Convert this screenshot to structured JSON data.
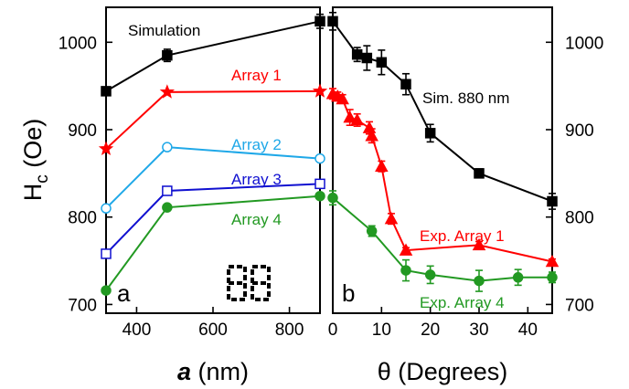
{
  "chart_data": [
    {
      "panel": "a",
      "type": "line",
      "xlabel_italic": "a",
      "xlabel_rest": " (nm)",
      "ylabel_main": "H",
      "ylabel_sub": "c",
      "ylabel_rest": " (Oe)",
      "xlim": [
        320,
        880
      ],
      "ylim": [
        690,
        1040
      ],
      "xticks": [
        400,
        600,
        800
      ],
      "yticks": [
        700,
        800,
        900,
        1000
      ],
      "series": [
        {
          "name": "Simulation",
          "color": "#000000",
          "marker": "square",
          "filled": true,
          "x": [
            320,
            480,
            880
          ],
          "y": [
            944,
            985,
            1024
          ],
          "err": [
            0,
            7,
            8
          ]
        },
        {
          "name": "Array 1",
          "color": "#ff0000",
          "marker": "star",
          "filled": true,
          "x": [
            320,
            480,
            880
          ],
          "y": [
            878,
            943,
            944
          ],
          "err": [
            0,
            0,
            0
          ]
        },
        {
          "name": "Array 2",
          "color": "#1fa8e8",
          "marker": "circle",
          "filled": false,
          "x": [
            320,
            480,
            880
          ],
          "y": [
            810,
            880,
            867
          ],
          "err": [
            0,
            0,
            0
          ]
        },
        {
          "name": "Array 3",
          "color": "#1010d0",
          "marker": "square",
          "filled": false,
          "x": [
            320,
            480,
            880
          ],
          "y": [
            758,
            830,
            838
          ],
          "err": [
            0,
            5,
            4
          ]
        },
        {
          "name": "Array 4",
          "color": "#229922",
          "marker": "circle",
          "filled": true,
          "x": [
            320,
            480,
            880
          ],
          "y": [
            716,
            811,
            824
          ],
          "err": [
            0,
            0,
            0
          ]
        }
      ],
      "labels": {
        "simulation": "Simulation",
        "array1": "Array 1",
        "array2": "Array 2",
        "array3": "Array 3",
        "array4": "Array 4",
        "panel": "a"
      }
    },
    {
      "panel": "b",
      "type": "line",
      "xlabel": "θ (Degrees)",
      "xlim": [
        0,
        45
      ],
      "ylim": [
        690,
        1040
      ],
      "xticks": [
        0,
        10,
        20,
        30,
        40
      ],
      "yticks": [
        700,
        800,
        900,
        1000
      ],
      "series": [
        {
          "name": "Sim. 880 nm",
          "color": "#000000",
          "marker": "square",
          "filled": true,
          "x": [
            0,
            5,
            7,
            10,
            15,
            20,
            30,
            45
          ],
          "y": [
            1024,
            986,
            982,
            977,
            952,
            896,
            850,
            818
          ],
          "err": [
            10,
            8,
            14,
            14,
            12,
            10,
            5,
            9
          ]
        },
        {
          "name": "Exp. Array 1",
          "color": "#ff0000",
          "marker": "triangle",
          "filled": true,
          "x": [
            0,
            1,
            2,
            3.5,
            5,
            7.5,
            8,
            10,
            12,
            15,
            30,
            45
          ],
          "y": [
            941,
            938,
            935,
            914,
            911,
            902,
            893,
            858,
            798,
            762,
            768,
            749
          ],
          "err": [
            6,
            5,
            5,
            9,
            7,
            7,
            8,
            6,
            6,
            3,
            4,
            3
          ]
        },
        {
          "name": "Exp. Array 4",
          "color": "#229922",
          "marker": "circle",
          "filled": true,
          "x": [
            0,
            8,
            15,
            20,
            30,
            38,
            45
          ],
          "y": [
            822,
            784,
            739,
            734,
            727,
            731,
            731
          ],
          "err": [
            8,
            6,
            12,
            10,
            12,
            9,
            6
          ]
        }
      ],
      "labels": {
        "sim": "Sim. 880 nm",
        "exp1": "Exp. Array 1",
        "exp4": "Exp. Array 4",
        "panel": "b"
      }
    }
  ]
}
